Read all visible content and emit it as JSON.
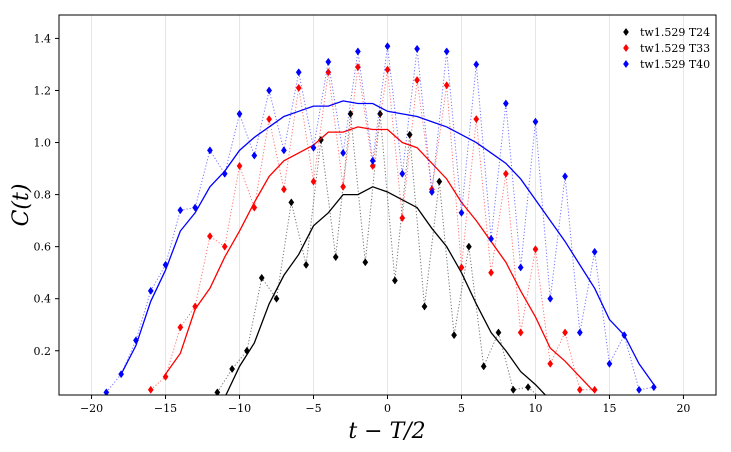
{
  "chart_data": {
    "type": "scatter",
    "xlabel": "t − T/2",
    "ylabel": "C(t)",
    "xlim": [
      -22.2,
      22.2
    ],
    "ylim": [
      0.03,
      1.49
    ],
    "xticks": [
      -20,
      -15,
      -10,
      -5,
      0,
      5,
      10,
      15,
      20
    ],
    "xtick_labels": [
      "−20",
      "−15",
      "−10",
      "−5",
      "0",
      "5",
      "10",
      "15",
      "20"
    ],
    "yticks": [
      0.2,
      0.4,
      0.6,
      0.8,
      1.0,
      1.2,
      1.4
    ],
    "ytick_labels": [
      "0.2",
      "0.4",
      "0.6",
      "0.8",
      "1.0",
      "1.2",
      "1.4"
    ],
    "grid": "vertical",
    "legend_position": "top-right",
    "series": [
      {
        "name": "tw1.529 T24",
        "color": "#000000",
        "points_x": [
          -11.5,
          -10.5,
          -9.5,
          -8.5,
          -7.5,
          -6.5,
          -5.5,
          -4.5,
          -3.5,
          -2.5,
          -1.5,
          -0.5,
          0.5,
          1.5,
          2.5,
          3.5,
          4.5,
          5.5,
          6.5,
          7.5,
          8.5,
          9.5,
          10.5
        ],
        "points_y": [
          0.04,
          0.13,
          0.2,
          0.48,
          0.4,
          0.77,
          0.53,
          1.01,
          0.56,
          1.11,
          0.54,
          1.11,
          0.47,
          1.03,
          0.37,
          0.85,
          0.26,
          0.6,
          0.14,
          0.27,
          0.05,
          0.06,
          0.01
        ],
        "curve_x": [
          -11.0,
          -10.0,
          -9.0,
          -8.0,
          -7.0,
          -6.0,
          -5.0,
          -4.0,
          -3.0,
          -2.0,
          -1.0,
          0.0,
          1.0,
          2.0,
          3.0,
          4.0,
          5.0,
          6.0,
          7.0,
          8.0,
          9.0,
          10.0,
          11.0
        ],
        "curve_y": [
          0.02,
          0.14,
          0.23,
          0.38,
          0.49,
          0.57,
          0.68,
          0.73,
          0.8,
          0.8,
          0.83,
          0.81,
          0.78,
          0.75,
          0.67,
          0.6,
          0.5,
          0.38,
          0.27,
          0.2,
          0.12,
          0.07,
          0.01
        ]
      },
      {
        "name": "tw1.529 T33",
        "color": "#ff0000",
        "points_x": [
          -16.0,
          -15.0,
          -14.0,
          -13.0,
          -12.0,
          -11.0,
          -10.0,
          -9.0,
          -8.0,
          -7.0,
          -6.0,
          -5.0,
          -4.0,
          -3.0,
          -2.0,
          -1.0,
          0.0,
          1.0,
          2.0,
          3.0,
          4.0,
          5.0,
          6.0,
          7.0,
          8.0,
          9.0,
          10.0,
          11.0,
          12.0,
          13.0,
          14.0
        ],
        "points_y": [
          0.05,
          0.1,
          0.29,
          0.37,
          0.64,
          0.6,
          0.91,
          0.75,
          1.09,
          0.82,
          1.21,
          0.85,
          1.27,
          0.83,
          1.29,
          0.91,
          1.28,
          0.71,
          1.24,
          0.82,
          1.22,
          0.52,
          1.09,
          0.5,
          0.88,
          0.27,
          0.59,
          0.15,
          0.27,
          0.05,
          0.05
        ],
        "curve_x": [
          -15.0,
          -14.0,
          -13.0,
          -12.0,
          -11.0,
          -10.0,
          -9.0,
          -8.0,
          -7.0,
          -6.0,
          -5.0,
          -4.0,
          -3.0,
          -2.0,
          -1.0,
          0.0,
          1.0,
          2.0,
          3.0,
          4.0,
          5.0,
          6.0,
          7.0,
          8.0,
          9.0,
          10.0,
          11.0,
          12.0,
          13.0,
          14.0
        ],
        "curve_y": [
          0.11,
          0.19,
          0.36,
          0.44,
          0.56,
          0.66,
          0.77,
          0.87,
          0.93,
          0.96,
          0.99,
          1.04,
          1.04,
          1.06,
          1.05,
          1.05,
          1.0,
          0.98,
          0.92,
          0.86,
          0.77,
          0.7,
          0.62,
          0.54,
          0.43,
          0.33,
          0.21,
          0.16,
          0.1,
          0.04
        ]
      },
      {
        "name": "tw1.529 T40",
        "color": "#0000ff",
        "points_x": [
          -19.0,
          -18.0,
          -17.0,
          -16.0,
          -15.0,
          -14.0,
          -13.0,
          -12.0,
          -11.0,
          -10.0,
          -9.0,
          -8.0,
          -7.0,
          -6.0,
          -5.0,
          -4.0,
          -3.0,
          -2.0,
          -1.0,
          0.0,
          1.0,
          2.0,
          3.0,
          4.0,
          5.0,
          6.0,
          7.0,
          8.0,
          9.0,
          10.0,
          11.0,
          12.0,
          13.0,
          14.0,
          15.0,
          16.0,
          17.0,
          18.0
        ],
        "points_y": [
          0.04,
          0.11,
          0.24,
          0.43,
          0.53,
          0.74,
          0.75,
          0.97,
          0.88,
          1.11,
          0.95,
          1.2,
          0.97,
          1.27,
          0.98,
          1.31,
          0.96,
          1.35,
          0.93,
          1.37,
          0.88,
          1.36,
          0.81,
          1.35,
          0.73,
          1.3,
          0.63,
          1.15,
          0.52,
          1.08,
          0.4,
          0.87,
          0.27,
          0.58,
          0.15,
          0.26,
          0.05,
          0.06
        ],
        "curve_x": [
          -18.0,
          -17.0,
          -16.0,
          -15.0,
          -14.0,
          -13.0,
          -12.0,
          -11.0,
          -10.0,
          -9.0,
          -8.0,
          -7.0,
          -6.0,
          -5.0,
          -4.0,
          -3.0,
          -2.0,
          -1.0,
          0.0,
          1.0,
          2.0,
          3.0,
          4.0,
          5.0,
          6.0,
          7.0,
          8.0,
          9.0,
          10.0,
          11.0,
          12.0,
          13.0,
          14.0,
          15.0,
          16.0,
          17.0,
          18.0
        ],
        "curve_y": [
          0.11,
          0.22,
          0.39,
          0.51,
          0.66,
          0.73,
          0.83,
          0.89,
          0.97,
          1.02,
          1.06,
          1.1,
          1.12,
          1.14,
          1.14,
          1.16,
          1.15,
          1.15,
          1.12,
          1.11,
          1.1,
          1.08,
          1.06,
          1.03,
          1.0,
          0.96,
          0.92,
          0.86,
          0.78,
          0.7,
          0.62,
          0.53,
          0.44,
          0.32,
          0.26,
          0.15,
          0.07
        ]
      }
    ]
  }
}
